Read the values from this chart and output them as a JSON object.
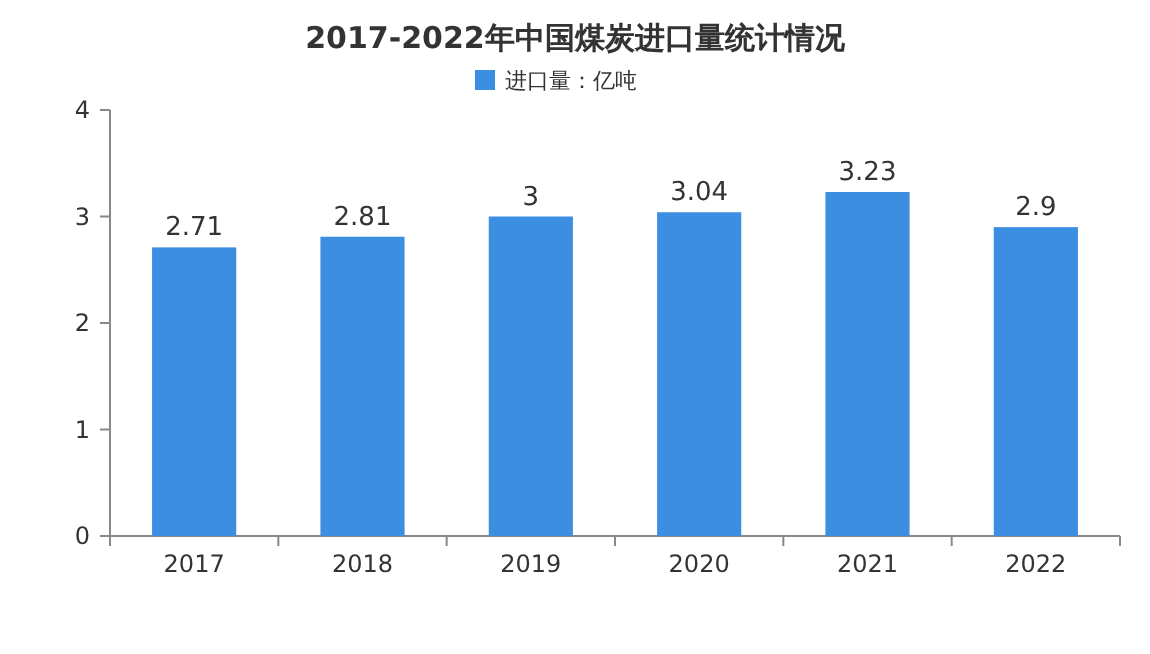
{
  "chart_data": {
    "type": "bar",
    "title": "2017-2022年中国煤炭进口量统计情况",
    "categories": [
      "2017",
      "2018",
      "2019",
      "2020",
      "2021",
      "2022"
    ],
    "series": [
      {
        "name": "进口量：亿吨",
        "color": "#3b8ee0",
        "values": [
          2.71,
          2.81,
          3,
          3.04,
          3.23,
          2.9
        ]
      }
    ],
    "ylim": [
      0,
      4
    ],
    "yticks": [
      0,
      1,
      2,
      3,
      4
    ],
    "data_labels": true,
    "legend": "top"
  }
}
